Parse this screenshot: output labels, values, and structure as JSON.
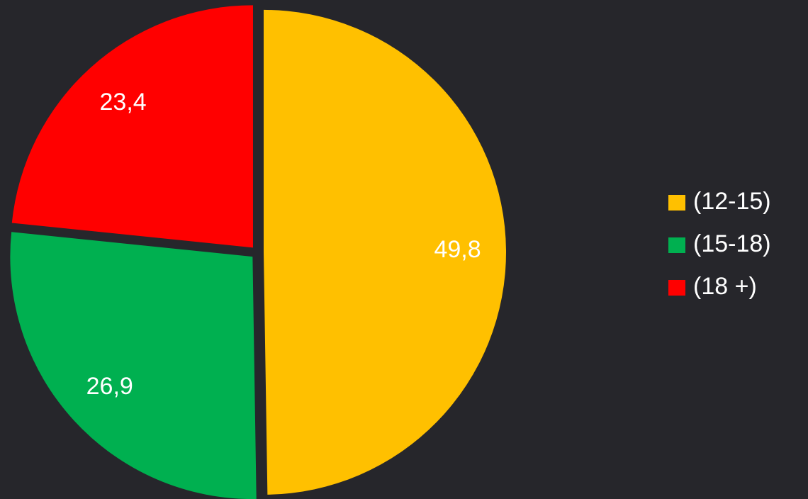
{
  "chart_data": {
    "type": "pie",
    "categories": [
      "(12-15)",
      "(15-18)",
      "(18 +)"
    ],
    "values": [
      49.8,
      26.9,
      23.4
    ],
    "value_labels": [
      "49,8",
      "26,9",
      "23,4"
    ],
    "colors": [
      "#FFC000",
      "#00B050",
      "#FF0000"
    ],
    "legend": "right"
  }
}
